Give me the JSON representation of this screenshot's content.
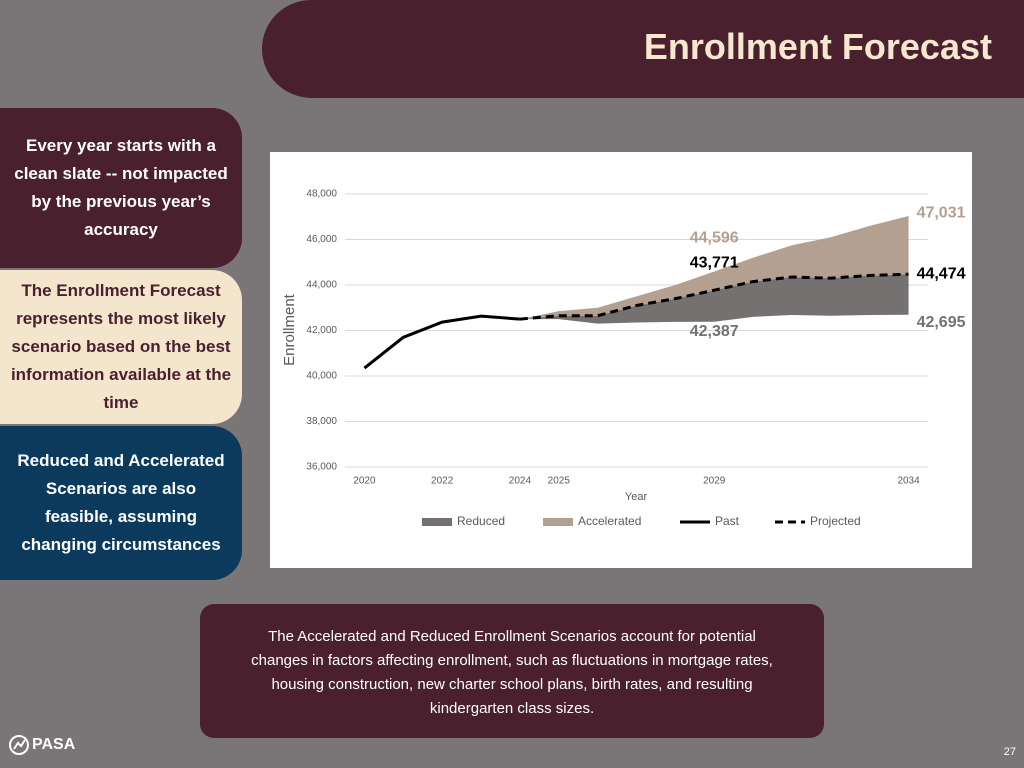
{
  "header": {
    "title": "Enrollment Forecast"
  },
  "callouts": [
    "Every year starts with a clean slate -- not impacted by the previous year’s accuracy",
    "The Enrollment Forecast represents the most likely scenario based on the best information available at the time",
    "Reduced and Accelerated Scenarios are also feasible, assuming changing circumstances"
  ],
  "chart_data": {
    "type": "line",
    "x_label": "Year",
    "y_label": "Enrollment",
    "x": [
      2020,
      2021,
      2022,
      2023,
      2024,
      2025,
      2026,
      2027,
      2028,
      2029,
      2030,
      2031,
      2032,
      2033,
      2034
    ],
    "xlim": [
      2019.5,
      2034.5
    ],
    "xticks": [
      2020,
      2022,
      2024,
      2025,
      2029,
      2034
    ],
    "ylim": [
      36000,
      48000
    ],
    "yticks": [
      {
        "value": 36000,
        "label": "36,000"
      },
      {
        "value": 38000,
        "label": "38,000"
      },
      {
        "value": 40000,
        "label": "40,000"
      },
      {
        "value": 42000,
        "label": "42,000"
      },
      {
        "value": 44000,
        "label": "44,000"
      },
      {
        "value": 46000,
        "label": "46,000"
      },
      {
        "value": 48000,
        "label": "48,000"
      }
    ],
    "grid": true,
    "series": [
      {
        "name": "Reduced",
        "color": "#767171",
        "mark": "area",
        "values": [
          null,
          null,
          null,
          null,
          42500,
          42500,
          42300,
          42350,
          42380,
          42387,
          42600,
          42680,
          42650,
          42680,
          42695
        ],
        "value_labels": [
          null,
          null,
          null,
          null,
          null,
          null,
          null,
          null,
          null,
          "42,387",
          null,
          null,
          null,
          null,
          "42,695"
        ]
      },
      {
        "name": "Accelerated",
        "color": "#b3a090",
        "mark": "area",
        "values": [
          null,
          null,
          null,
          null,
          42500,
          42850,
          43000,
          43500,
          44000,
          44596,
          45200,
          45750,
          46100,
          46600,
          47031
        ],
        "value_labels": [
          null,
          null,
          null,
          null,
          null,
          null,
          null,
          null,
          null,
          "44,596",
          null,
          null,
          null,
          null,
          "47,031"
        ]
      },
      {
        "name": "Past",
        "color": "#000000",
        "mark": "line",
        "values": [
          40350,
          41700,
          42370,
          42630,
          42500,
          null,
          null,
          null,
          null,
          null,
          null,
          null,
          null,
          null,
          null
        ]
      },
      {
        "name": "Projected",
        "color": "#000000",
        "mark": "line",
        "dashed": true,
        "values": [
          null,
          null,
          null,
          null,
          42500,
          42650,
          42650,
          43100,
          43400,
          43771,
          44150,
          44350,
          44300,
          44420,
          44474
        ],
        "value_labels": [
          null,
          null,
          null,
          null,
          null,
          null,
          null,
          null,
          null,
          "43,771",
          null,
          null,
          null,
          null,
          "44,474"
        ]
      }
    ]
  },
  "footer": {
    "note": "The Accelerated and Reduced Enrollment Scenarios account for potential changes in factors affecting enrollment, such as fluctuations in mortgage rates, housing construction, new charter school plans, birth rates, and resulting kindergarten class sizes.",
    "logo": "PASA",
    "page_number": "27"
  }
}
